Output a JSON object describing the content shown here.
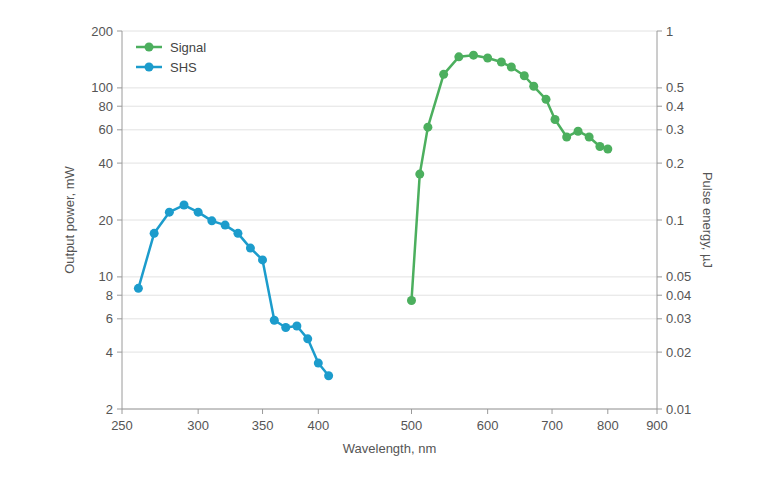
{
  "chart_data": {
    "type": "line",
    "x_label": "Wavelength, nm",
    "y_label": "Output power, mW",
    "y2_label": "Pulse energy, µJ",
    "log": true,
    "grid": true,
    "legend": "upper left",
    "marker": "circle",
    "line_style": "solid",
    "xlim": [
      250,
      900
    ],
    "xticks": [
      250,
      300,
      350,
      400,
      500,
      600,
      700,
      800,
      900
    ],
    "ylim": [
      2,
      200
    ],
    "yticks": [
      2,
      4,
      6,
      8,
      10,
      20,
      40,
      60,
      80,
      100,
      200
    ],
    "y2lim": [
      0.01,
      1
    ],
    "y2ticks": [
      0.01,
      0.02,
      0.03,
      0.04,
      0.05,
      0.1,
      0.2,
      0.3,
      0.4,
      0.5,
      1
    ],
    "series": [
      {
        "name": "Signal",
        "color": "#4caf5e",
        "x": [
          500,
          510,
          520,
          540,
          560,
          580,
          600,
          620,
          635,
          655,
          670,
          690,
          705,
          725,
          745,
          765,
          785,
          800
        ],
        "values": [
          7.5,
          35,
          62,
          118,
          146,
          149,
          144,
          137,
          129,
          116,
          102,
          87,
          68,
          55,
          59,
          55,
          49,
          47.5
        ]
      },
      {
        "name": "SHS",
        "color": "#1c9ccc",
        "x": [
          260,
          270,
          280,
          290,
          300,
          310,
          320,
          330,
          340,
          350,
          360,
          370,
          380,
          390,
          400,
          410
        ],
        "values": [
          8.7,
          17,
          22,
          24,
          22,
          19.8,
          18.8,
          17,
          14.2,
          12.3,
          5.9,
          5.4,
          5.5,
          4.7,
          3.5,
          3.0
        ]
      }
    ]
  }
}
